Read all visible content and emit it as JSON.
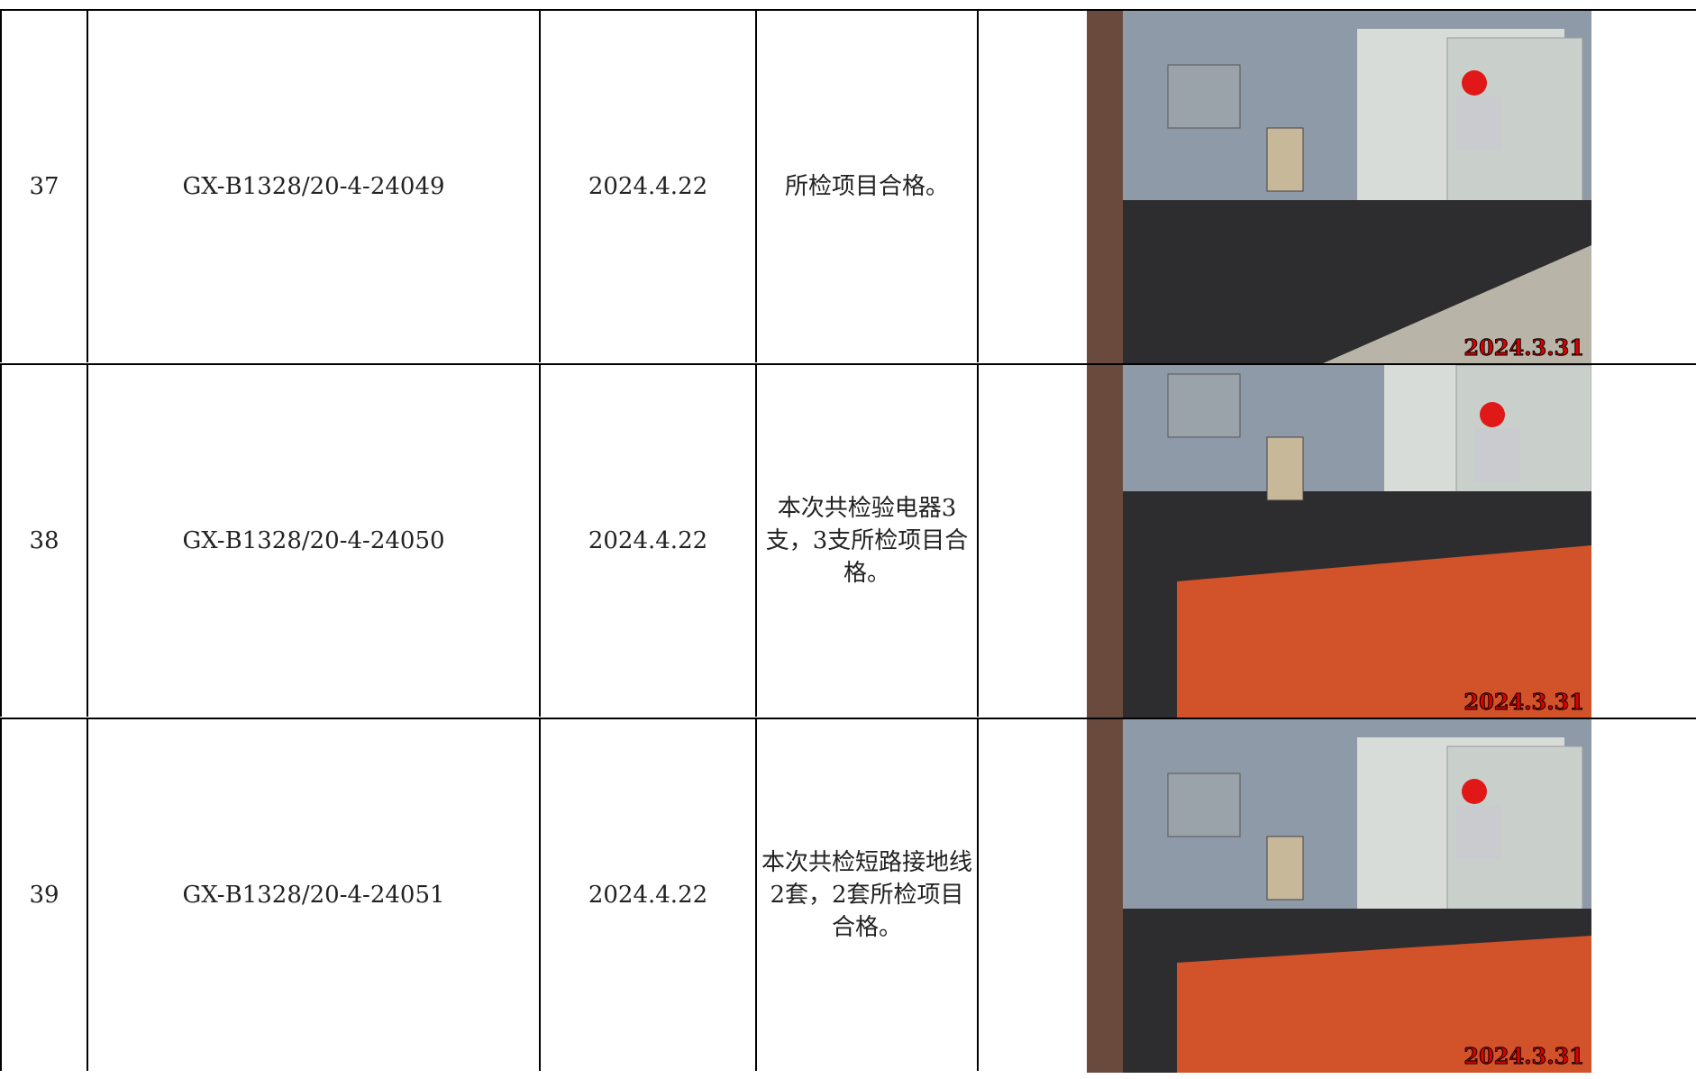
{
  "table": {
    "rows": [
      {
        "no": "37",
        "code": "GX-B1328/20-4-24049",
        "date": "2024.4.22",
        "result": "所检项目合格。",
        "photo_stamp": "2024.3.31"
      },
      {
        "no": "38",
        "code": "GX-B1328/20-4-24050",
        "date": "2024.4.22",
        "result": "本次共检验电器3支，3支所检项目合格。",
        "photo_stamp": "2024.3.31"
      },
      {
        "no": "39",
        "code": "GX-B1328/20-4-24051",
        "date": "2024.4.22",
        "result": "本次共检短路接地线2套，2套所检项目合格。",
        "photo_stamp": "2024.3.31"
      }
    ]
  }
}
